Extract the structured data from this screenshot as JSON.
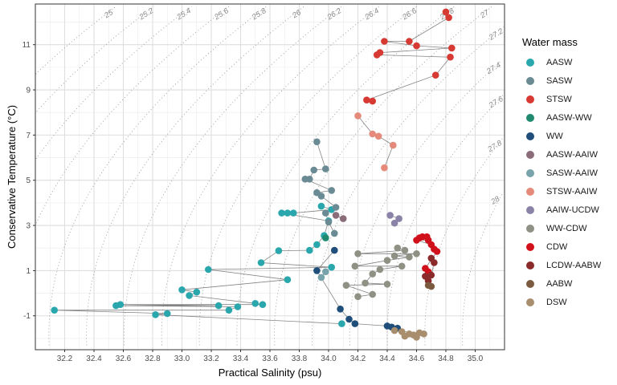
{
  "chart_data": {
    "type": "scatter",
    "xlabel": "Practical Salinity (psu)",
    "ylabel": "Conservative Temperature (°C)",
    "xlim": [
      32.0,
      35.2
    ],
    "ylim": [
      -2.5,
      12.8
    ],
    "x_ticks": [
      "32.2",
      "32.4",
      "32.6",
      "32.8",
      "33.0",
      "33.2",
      "33.4",
      "33.6",
      "33.8",
      "34.0",
      "34.2",
      "34.4",
      "34.6",
      "34.8",
      "35.0"
    ],
    "x_tick_values": [
      32.2,
      32.4,
      32.6,
      32.8,
      33.0,
      33.2,
      33.4,
      33.6,
      33.8,
      34.0,
      34.2,
      34.4,
      34.6,
      34.8,
      35.0
    ],
    "y_ticks": [
      "-1",
      "1",
      "3",
      "5",
      "7",
      "9",
      "11"
    ],
    "y_tick_values": [
      -1,
      1,
      3,
      5,
      7,
      9,
      11
    ],
    "grid": true,
    "legend_title": "Water mass",
    "legend_position": "right",
    "isopycnal_labels": [
      "25",
      "25.2",
      "25.4",
      "25.6",
      "25.8",
      "26",
      "26.2",
      "26.4",
      "26.6",
      "26.8",
      "27",
      "27.2",
      "27.4",
      "27.6",
      "27.8",
      "28"
    ],
    "isopycnal_values": [
      25,
      25.2,
      25.4,
      25.6,
      25.8,
      26,
      26.2,
      26.4,
      26.6,
      26.8,
      27,
      27.2,
      27.4,
      27.6,
      27.8,
      28
    ],
    "series": [
      {
        "name": "AASW",
        "color": "#2aa7ad",
        "points": [
          [
            32.13,
            -0.75
          ],
          [
            32.55,
            -0.55
          ],
          [
            32.58,
            -0.5
          ],
          [
            32.82,
            -0.95
          ],
          [
            32.9,
            -0.9
          ],
          [
            33.0,
            0.15
          ],
          [
            33.05,
            -0.1
          ],
          [
            33.1,
            0.05
          ],
          [
            33.18,
            1.05
          ],
          [
            33.25,
            -0.55
          ],
          [
            33.32,
            -0.75
          ],
          [
            33.38,
            -0.6
          ],
          [
            33.5,
            -0.45
          ],
          [
            33.55,
            -0.5
          ],
          [
            33.54,
            1.35
          ],
          [
            33.66,
            1.88
          ],
          [
            33.72,
            0.6
          ],
          [
            33.68,
            3.55
          ],
          [
            33.72,
            3.55
          ],
          [
            33.76,
            3.55
          ],
          [
            33.95,
            3.85
          ],
          [
            34.02,
            3.7
          ],
          [
            34.0,
            3.2
          ],
          [
            33.92,
            2.15
          ],
          [
            33.97,
            2.55
          ],
          [
            34.02,
            1.15
          ],
          [
            34.09,
            -1.35
          ],
          [
            33.87,
            1.9
          ]
        ]
      },
      {
        "name": "SASW",
        "color": "#6a8a94",
        "points": [
          [
            33.84,
            5.05
          ],
          [
            33.87,
            5.05
          ],
          [
            33.9,
            5.45
          ],
          [
            33.98,
            5.5
          ],
          [
            33.92,
            4.45
          ],
          [
            33.95,
            4.3
          ],
          [
            34.02,
            4.55
          ],
          [
            33.92,
            6.7
          ],
          [
            33.98,
            3.55
          ],
          [
            34.05,
            3.8
          ],
          [
            34.0,
            3.15
          ],
          [
            34.04,
            2.65
          ]
        ]
      },
      {
        "name": "STSW",
        "color": "#d63a33",
        "points": [
          [
            34.33,
            10.55
          ],
          [
            34.35,
            10.65
          ],
          [
            34.38,
            11.15
          ],
          [
            34.55,
            11.15
          ],
          [
            34.6,
            10.95
          ],
          [
            34.8,
            12.45
          ],
          [
            34.82,
            12.2
          ],
          [
            34.84,
            10.85
          ],
          [
            34.83,
            10.45
          ],
          [
            34.73,
            9.65
          ],
          [
            34.26,
            8.55
          ],
          [
            34.3,
            8.5
          ]
        ]
      },
      {
        "name": "AASW-WW",
        "color": "#1f8a70",
        "points": [
          [
            33.98,
            2.45
          ]
        ]
      },
      {
        "name": "WW",
        "color": "#1e4e79",
        "points": [
          [
            34.04,
            1.9
          ],
          [
            33.92,
            1.0
          ],
          [
            34.08,
            -0.7
          ],
          [
            34.14,
            -1.15
          ],
          [
            34.18,
            -1.35
          ],
          [
            34.4,
            -1.45
          ],
          [
            34.43,
            -1.5
          ],
          [
            34.47,
            -1.55
          ]
        ]
      },
      {
        "name": "AASW-AAIW",
        "color": "#8b6d7a",
        "points": [
          [
            34.05,
            3.45
          ],
          [
            34.1,
            3.3
          ]
        ]
      },
      {
        "name": "SASW-AAIW",
        "color": "#78a3ab",
        "points": [
          [
            33.98,
            0.95
          ],
          [
            33.95,
            0.7
          ]
        ]
      },
      {
        "name": "STSW-AAIW",
        "color": "#e58a7a",
        "points": [
          [
            34.2,
            7.85
          ],
          [
            34.3,
            7.05
          ],
          [
            34.34,
            6.95
          ],
          [
            34.38,
            5.55
          ],
          [
            34.44,
            6.55
          ]
        ]
      },
      {
        "name": "AAIW-UCDW",
        "color": "#8b82a8",
        "points": [
          [
            34.42,
            3.45
          ],
          [
            34.45,
            3.1
          ],
          [
            34.48,
            3.3
          ]
        ]
      },
      {
        "name": "WW-CDW",
        "color": "#8e9184",
        "points": [
          [
            34.25,
            0.45
          ],
          [
            34.3,
            0.85
          ],
          [
            34.35,
            1.05
          ],
          [
            34.4,
            1.45
          ],
          [
            34.45,
            1.65
          ],
          [
            34.47,
            2.0
          ],
          [
            34.5,
            1.2
          ],
          [
            34.55,
            1.6
          ],
          [
            34.6,
            1.75
          ],
          [
            34.2,
            -0.15
          ],
          [
            34.12,
            0.35
          ],
          [
            34.18,
            1.2
          ],
          [
            34.2,
            1.75
          ],
          [
            34.3,
            -0.05
          ],
          [
            34.4,
            0.4
          ],
          [
            34.52,
            1.9
          ]
        ]
      },
      {
        "name": "CDW",
        "color": "#d0101a",
        "points": [
          [
            34.6,
            2.35
          ],
          [
            34.62,
            2.45
          ],
          [
            34.64,
            2.5
          ],
          [
            34.67,
            2.5
          ],
          [
            34.68,
            2.35
          ],
          [
            34.7,
            2.15
          ],
          [
            34.72,
            1.95
          ],
          [
            34.74,
            1.85
          ],
          [
            34.66,
            1.1
          ],
          [
            34.68,
            0.95
          ]
        ]
      },
      {
        "name": "LCDW-AABW",
        "color": "#8b2a2a",
        "points": [
          [
            34.7,
            1.55
          ],
          [
            34.72,
            1.35
          ],
          [
            34.66,
            0.75
          ],
          [
            34.68,
            0.55
          ],
          [
            34.7,
            0.8
          ]
        ]
      },
      {
        "name": "AABW",
        "color": "#7b5a3f",
        "points": [
          [
            34.68,
            0.35
          ],
          [
            34.7,
            0.3
          ]
        ]
      },
      {
        "name": "DSW",
        "color": "#a98e6d",
        "points": [
          [
            34.45,
            -1.65
          ],
          [
            34.5,
            -1.7
          ],
          [
            34.55,
            -1.8
          ],
          [
            34.58,
            -1.85
          ],
          [
            34.62,
            -1.75
          ],
          [
            34.65,
            -1.8
          ],
          [
            34.52,
            -1.9
          ],
          [
            34.6,
            -1.95
          ]
        ]
      }
    ]
  }
}
